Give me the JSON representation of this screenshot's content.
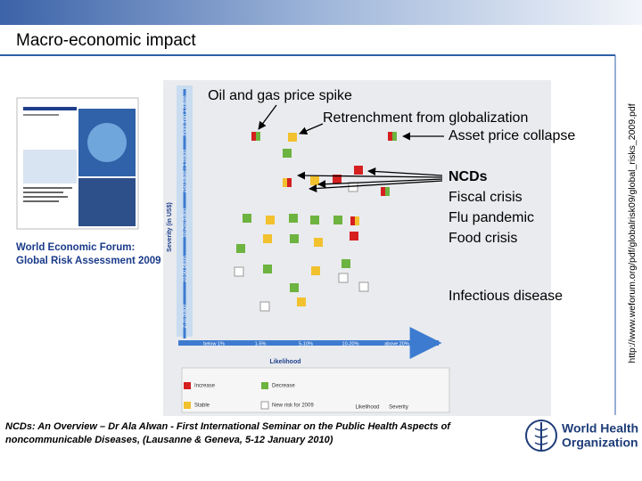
{
  "header": {
    "title": "Macro-economic impact"
  },
  "source_url": "http://www.weforum.org/pdf/globalrisk09/global_risks_2009.pdf",
  "caption": [
    "World Economic Forum:",
    "Global Risk Assessment 2009"
  ],
  "annotations": [
    "Oil and gas price spike",
    "Retrenchment from globalization",
    "Asset price collapse",
    "NCDs",
    "Fiscal crisis",
    "Flu pandemic",
    "Food crisis",
    "Infectious disease"
  ],
  "figure": {
    "severity_label": "Severity (in US$)",
    "severity_levels": [
      "2-10 billion",
      "10-50 billion",
      "50-250 billion",
      "250 billion - 1 trillion",
      "more than 1 trillion"
    ],
    "likelihood_label": "Likelihood",
    "likelihood_levels": [
      "below 1%",
      "1-5%",
      "5-10%",
      "10-20%",
      "above 20%"
    ],
    "key": [
      "Increase",
      "Decrease",
      "Stable",
      "New risk for 2009",
      "Likelihood",
      "Severity"
    ]
  },
  "footer": {
    "citation": [
      "NCDs: An Overview – Dr Ala Alwan - First International Seminar on the Public Health Aspects of",
      "noncommunicable Diseases, (Lausanne & Geneva, 5-12 January 2010)"
    ],
    "logo": [
      "World Health",
      "Organization"
    ]
  }
}
